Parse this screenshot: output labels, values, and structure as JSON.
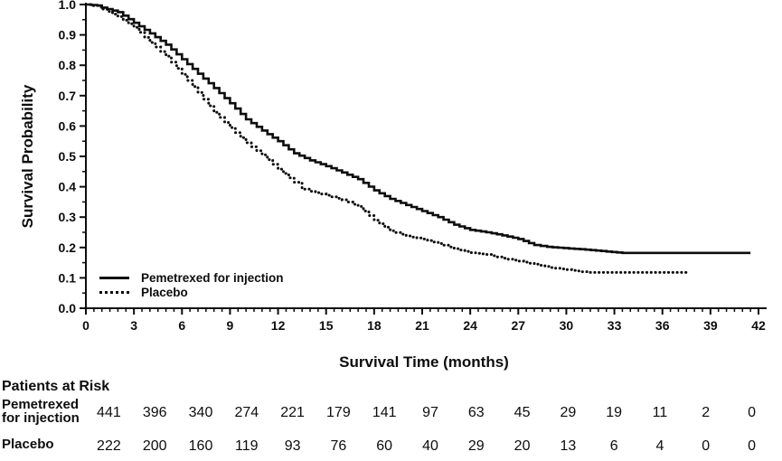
{
  "chart_data": {
    "type": "line",
    "subtype": "kaplan-meier-step",
    "title": "",
    "xlabel": "Survival Time (months)",
    "ylabel": "Survival Probability",
    "xlim": [
      0,
      42
    ],
    "ylim": [
      0.0,
      1.0
    ],
    "x_ticks": [
      0,
      3,
      6,
      9,
      12,
      15,
      18,
      21,
      24,
      27,
      30,
      33,
      36,
      39,
      42
    ],
    "x_minor_tick_interval": 0.5,
    "y_tick_labels": [
      "1.0",
      "0.9",
      "0.8",
      "0.7",
      "0.6",
      "0.5",
      "0.4",
      "0.3",
      "0.2",
      "0.1",
      "0.0"
    ],
    "y_minor_tick_interval": 0.05,
    "grid": false,
    "legend_position": "inside-lower-left",
    "series": [
      {
        "name": "Pemetrexed for injection",
        "style": "solid",
        "color": "#0d0d0d",
        "step_points": [
          [
            0,
            1.0
          ],
          [
            0.7,
            0.997
          ],
          [
            1,
            0.99
          ],
          [
            2,
            0.975
          ],
          [
            3,
            0.94
          ],
          [
            4,
            0.905
          ],
          [
            5,
            0.868
          ],
          [
            6,
            0.82
          ],
          [
            7,
            0.772
          ],
          [
            8,
            0.725
          ],
          [
            9,
            0.675
          ],
          [
            10,
            0.622
          ],
          [
            11,
            0.585
          ],
          [
            12,
            0.55
          ],
          [
            13,
            0.51
          ],
          [
            14,
            0.487
          ],
          [
            15,
            0.468
          ],
          [
            16,
            0.447
          ],
          [
            17,
            0.425
          ],
          [
            18,
            0.388
          ],
          [
            19,
            0.36
          ],
          [
            20,
            0.34
          ],
          [
            21,
            0.32
          ],
          [
            22,
            0.3
          ],
          [
            23,
            0.275
          ],
          [
            24,
            0.258
          ],
          [
            25,
            0.25
          ],
          [
            26,
            0.24
          ],
          [
            27,
            0.228
          ],
          [
            28,
            0.208
          ],
          [
            28.8,
            0.202
          ],
          [
            31.2,
            0.193
          ],
          [
            33.5,
            0.182
          ],
          [
            41.5,
            0.182
          ]
        ]
      },
      {
        "name": "Placebo",
        "style": "dotted",
        "color": "#0d0d0d",
        "step_points": [
          [
            0,
            1.0
          ],
          [
            0.8,
            0.993
          ],
          [
            1,
            0.985
          ],
          [
            2,
            0.96
          ],
          [
            3,
            0.925
          ],
          [
            4,
            0.875
          ],
          [
            5,
            0.83
          ],
          [
            6,
            0.77
          ],
          [
            7,
            0.71
          ],
          [
            8,
            0.645
          ],
          [
            9,
            0.595
          ],
          [
            10,
            0.545
          ],
          [
            11,
            0.505
          ],
          [
            12,
            0.458
          ],
          [
            13,
            0.415
          ],
          [
            13.5,
            0.392
          ],
          [
            14,
            0.385
          ],
          [
            15,
            0.372
          ],
          [
            16,
            0.357
          ],
          [
            17,
            0.335
          ],
          [
            18,
            0.29
          ],
          [
            19,
            0.255
          ],
          [
            20,
            0.238
          ],
          [
            21,
            0.228
          ],
          [
            22,
            0.213
          ],
          [
            23,
            0.196
          ],
          [
            24,
            0.183
          ],
          [
            25,
            0.177
          ],
          [
            26,
            0.165
          ],
          [
            27,
            0.155
          ],
          [
            28,
            0.145
          ],
          [
            29,
            0.134
          ],
          [
            30,
            0.127
          ],
          [
            31.3,
            0.118
          ],
          [
            37.6,
            0.118
          ]
        ]
      }
    ]
  },
  "risk_table": {
    "title": "Patients at Risk",
    "time_points": [
      0,
      3,
      6,
      9,
      12,
      15,
      18,
      21,
      24,
      27,
      30,
      33,
      36,
      39,
      42
    ],
    "rows": [
      {
        "label": "Pemetrexed for injection",
        "label_lines": "Pemetrexed\nfor injection",
        "counts": [
          441,
          396,
          340,
          274,
          221,
          179,
          141,
          97,
          63,
          45,
          29,
          19,
          11,
          2,
          0
        ]
      },
      {
        "label": "Placebo",
        "label_lines": "Placebo",
        "counts": [
          222,
          200,
          160,
          119,
          93,
          76,
          60,
          40,
          29,
          20,
          13,
          6,
          4,
          0,
          0
        ]
      }
    ]
  },
  "colors": {
    "background": "#ffffff",
    "axis": "#0d0d0d",
    "text": "#0d0d0d",
    "curve": "#0d0d0d"
  }
}
